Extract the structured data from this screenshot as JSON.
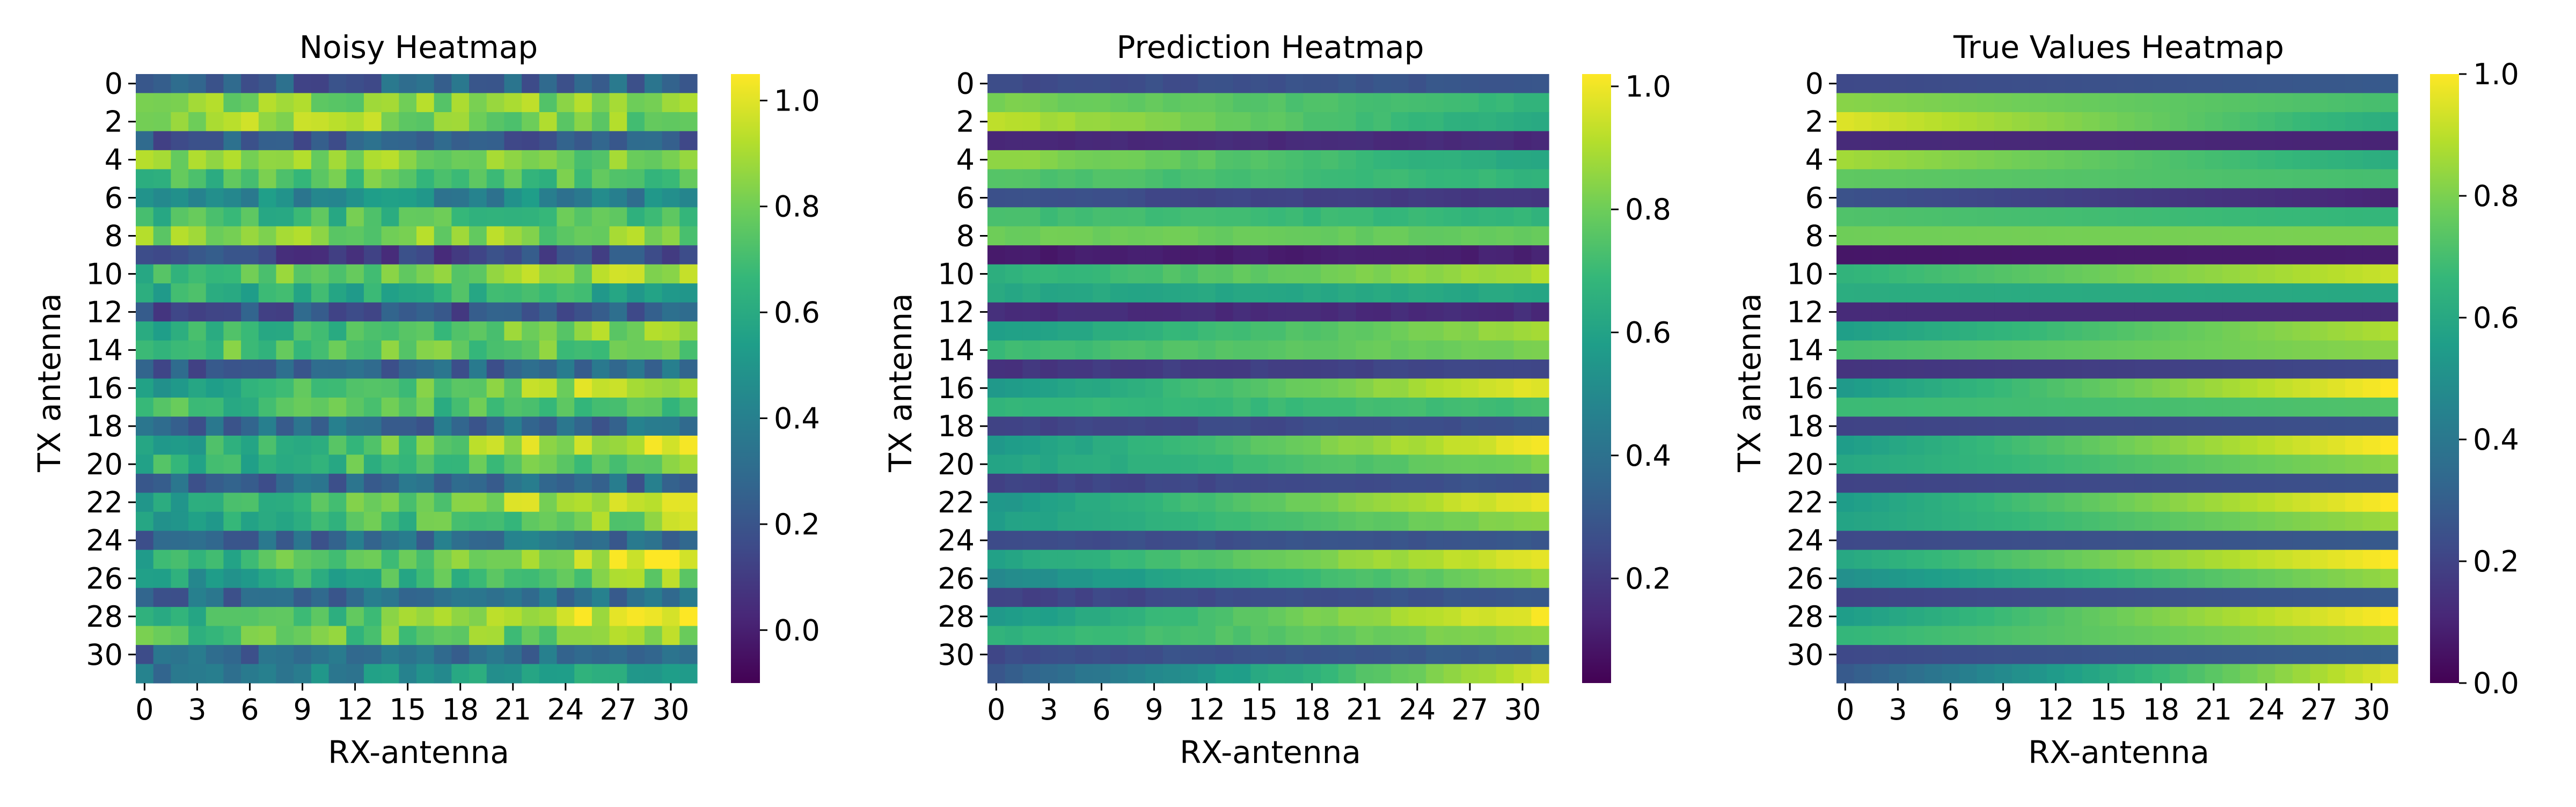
{
  "chart_data": [
    {
      "type": "heatmap",
      "title": "Noisy Heatmap",
      "xlabel": "RX-antenna",
      "ylabel": "TX antenna",
      "rows": 32,
      "cols": 32,
      "x_tick_labels": [
        "0",
        "3",
        "6",
        "9",
        "12",
        "15",
        "18",
        "21",
        "24",
        "27",
        "30"
      ],
      "y_tick_labels": [
        "0",
        "2",
        "4",
        "6",
        "8",
        "10",
        "12",
        "14",
        "16",
        "18",
        "20",
        "22",
        "24",
        "26",
        "28",
        "30"
      ],
      "colormap": "viridis",
      "vmin": -0.1,
      "vmax": 1.05,
      "colorbar_ticks": [
        "0.0",
        "0.2",
        "0.4",
        "0.6",
        "0.8",
        "1.0"
      ],
      "row_start": [
        0.22,
        0.83,
        0.9,
        0.22,
        0.88,
        0.72,
        0.48,
        0.7,
        0.82,
        0.12,
        0.7,
        0.62,
        0.18,
        0.6,
        0.72,
        0.22,
        0.58,
        0.68,
        0.28,
        0.58,
        0.62,
        0.28,
        0.55,
        0.58,
        0.28,
        0.62,
        0.52,
        0.28,
        0.58,
        0.7,
        0.28,
        0.35
      ],
      "row_end": [
        0.3,
        0.83,
        0.8,
        0.22,
        0.8,
        0.72,
        0.4,
        0.7,
        0.82,
        0.15,
        0.92,
        0.62,
        0.22,
        0.88,
        0.8,
        0.3,
        0.98,
        0.72,
        0.3,
        1.02,
        0.82,
        0.3,
        1.05,
        0.86,
        0.32,
        1.0,
        0.85,
        0.35,
        1.02,
        0.85,
        0.35,
        0.62
      ],
      "noise": 0.12
    },
    {
      "type": "heatmap",
      "title": "Prediction Heatmap",
      "xlabel": "RX-antenna",
      "ylabel": "TX antenna",
      "rows": 32,
      "cols": 32,
      "x_tick_labels": [
        "0",
        "3",
        "6",
        "9",
        "12",
        "15",
        "18",
        "21",
        "24",
        "27",
        "30"
      ],
      "y_tick_labels": [
        "0",
        "2",
        "4",
        "6",
        "8",
        "10",
        "12",
        "14",
        "16",
        "18",
        "20",
        "22",
        "24",
        "26",
        "28",
        "30"
      ],
      "colormap": "viridis",
      "vmin": 0.03,
      "vmax": 1.02,
      "colorbar_ticks": [
        "0.2",
        "0.4",
        "0.6",
        "0.8",
        "1.0"
      ],
      "row_start": [
        0.25,
        0.82,
        0.92,
        0.15,
        0.86,
        0.75,
        0.28,
        0.72,
        0.8,
        0.1,
        0.66,
        0.62,
        0.15,
        0.58,
        0.7,
        0.18,
        0.55,
        0.68,
        0.22,
        0.55,
        0.6,
        0.22,
        0.55,
        0.58,
        0.25,
        0.6,
        0.5,
        0.22,
        0.55,
        0.66,
        0.25,
        0.3
      ],
      "row_end": [
        0.3,
        0.68,
        0.62,
        0.15,
        0.62,
        0.68,
        0.18,
        0.68,
        0.78,
        0.12,
        0.9,
        0.62,
        0.15,
        0.88,
        0.82,
        0.25,
        0.98,
        0.72,
        0.28,
        1.0,
        0.82,
        0.28,
        1.0,
        0.85,
        0.3,
        0.98,
        0.84,
        0.3,
        1.0,
        0.85,
        0.32,
        0.95
      ],
      "noise": 0.015
    },
    {
      "type": "heatmap",
      "title": "True Values Heatmap",
      "xlabel": "RX-antenna",
      "ylabel": "TX antenna",
      "rows": 32,
      "cols": 32,
      "x_tick_labels": [
        "0",
        "3",
        "6",
        "9",
        "12",
        "15",
        "18",
        "21",
        "24",
        "27",
        "30"
      ],
      "y_tick_labels": [
        "0",
        "2",
        "4",
        "6",
        "8",
        "10",
        "12",
        "14",
        "16",
        "18",
        "20",
        "22",
        "24",
        "26",
        "28",
        "30"
      ],
      "colormap": "viridis",
      "vmin": 0.0,
      "vmax": 1.0,
      "colorbar_ticks": [
        "0.0",
        "0.2",
        "0.4",
        "0.6",
        "0.8",
        "1.0"
      ],
      "row_start": [
        0.22,
        0.82,
        0.95,
        0.12,
        0.86,
        0.75,
        0.25,
        0.72,
        0.78,
        0.06,
        0.65,
        0.62,
        0.12,
        0.56,
        0.7,
        0.15,
        0.54,
        0.68,
        0.2,
        0.55,
        0.6,
        0.2,
        0.55,
        0.58,
        0.22,
        0.6,
        0.5,
        0.2,
        0.55,
        0.66,
        0.22,
        0.28
      ],
      "row_end": [
        0.28,
        0.7,
        0.62,
        0.1,
        0.62,
        0.7,
        0.1,
        0.66,
        0.8,
        0.08,
        0.92,
        0.6,
        0.12,
        0.88,
        0.82,
        0.22,
        1.0,
        0.72,
        0.25,
        1.0,
        0.82,
        0.25,
        1.0,
        0.85,
        0.28,
        1.0,
        0.84,
        0.28,
        1.0,
        0.85,
        0.3,
        0.96
      ],
      "noise": 0.0
    }
  ]
}
